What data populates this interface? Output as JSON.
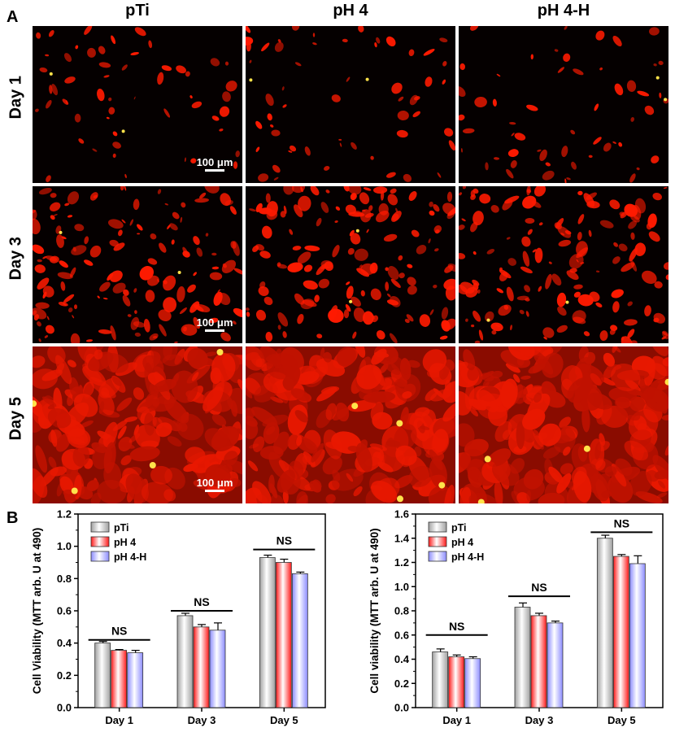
{
  "panels": {
    "a_letter": "A",
    "b_letter": "B"
  },
  "micrographs": {
    "columns": [
      "pTi",
      "pH 4",
      "pH 4-H"
    ],
    "rows": [
      "Day 1",
      "Day 3",
      "Day 5"
    ],
    "scale_bar_label": "100 μm",
    "colors": {
      "background": "#000000",
      "cells": "#ff1a00",
      "highlight": "#ffe24a"
    }
  },
  "chart_data": [
    {
      "type": "bar",
      "categories": [
        "Day 1",
        "Day 3",
        "Day 5"
      ],
      "ylabel": "Cell Viability (MTT arb. U at 490)",
      "xlabel": "",
      "ylim": [
        0,
        1.2
      ],
      "yticks": [
        "0.0",
        "0.2",
        "0.4",
        "0.6",
        "0.8",
        "1.0",
        "1.2"
      ],
      "legend": "top-left",
      "series": [
        {
          "name": "pTi",
          "values": [
            0.4,
            0.57,
            0.93
          ],
          "errors": [
            0.01,
            0.015,
            0.015
          ],
          "color": "#a0a0a0"
        },
        {
          "name": "pH 4",
          "values": [
            0.355,
            0.5,
            0.9
          ],
          "errors": [
            0.005,
            0.015,
            0.02
          ],
          "color": "#ff1a1a"
        },
        {
          "name": "pH 4-H",
          "values": [
            0.34,
            0.48,
            0.83
          ],
          "errors": [
            0.015,
            0.045,
            0.01
          ],
          "color": "#8c8cff"
        }
      ],
      "annotations": [
        {
          "category": "Day 1",
          "text": "NS",
          "line_y": 0.42
        },
        {
          "category": "Day 3",
          "text": "NS",
          "line_y": 0.6
        },
        {
          "category": "Day 5",
          "text": "NS",
          "line_y": 0.98
        }
      ]
    },
    {
      "type": "bar",
      "categories": [
        "Day 1",
        "Day 3",
        "Day 5"
      ],
      "ylabel": "Cell viability (MTT arb. U at 490)",
      "xlabel": "",
      "ylim": [
        0,
        1.6
      ],
      "yticks": [
        "0.0",
        "0.2",
        "0.4",
        "0.6",
        "0.8",
        "1.0",
        "1.2",
        "1.4",
        "1.6"
      ],
      "legend": "top-left",
      "series": [
        {
          "name": "pTi",
          "values": [
            0.46,
            0.83,
            1.4
          ],
          "errors": [
            0.025,
            0.035,
            0.025
          ],
          "color": "#a0a0a0"
        },
        {
          "name": "pH 4",
          "values": [
            0.42,
            0.76,
            1.25
          ],
          "errors": [
            0.015,
            0.02,
            0.015
          ],
          "color": "#ff1a1a"
        },
        {
          "name": "pH 4-H",
          "values": [
            0.405,
            0.7,
            1.19
          ],
          "errors": [
            0.015,
            0.015,
            0.065
          ],
          "color": "#8c8cff"
        }
      ],
      "annotations": [
        {
          "category": "Day 1",
          "text": "NS",
          "line_y": 0.6
        },
        {
          "category": "Day 3",
          "text": "NS",
          "line_y": 0.92
        },
        {
          "category": "Day 5",
          "text": "NS",
          "line_y": 1.45
        }
      ]
    }
  ]
}
